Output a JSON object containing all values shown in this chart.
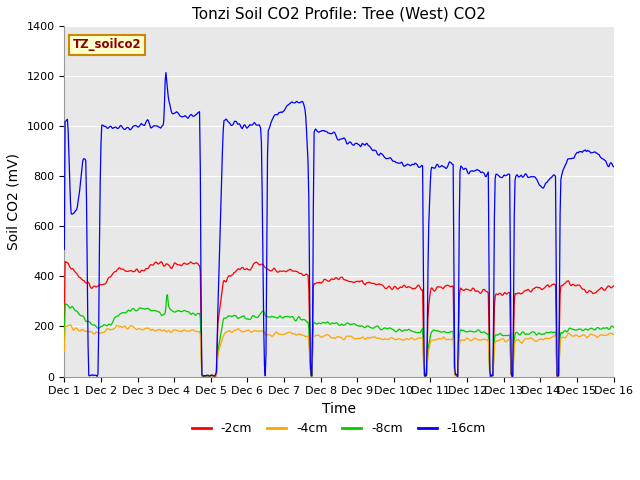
{
  "title": "Tonzi Soil CO2 Profile: Tree (West) CO2",
  "ylabel": "Soil CO2 (mV)",
  "xlabel": "Time",
  "legend_label": "TZ_soilco2",
  "series_labels": [
    "-2cm",
    "-4cm",
    "-8cm",
    "-16cm"
  ],
  "series_colors": [
    "#ff0000",
    "#ffa500",
    "#00cc00",
    "#0000ff"
  ],
  "ylim": [
    0,
    1400
  ],
  "xlim": [
    0,
    360
  ],
  "xtick_positions": [
    0,
    24,
    48,
    72,
    96,
    120,
    144,
    168,
    192,
    216,
    240,
    264,
    288,
    312,
    336,
    360
  ],
  "xtick_labels": [
    "Dec 1",
    "Dec 2",
    "Dec 3",
    "Dec 4",
    "Dec 5",
    "Dec 6",
    "Dec 7",
    "Dec 8",
    "Dec 9",
    "Dec 10",
    "Dec 11",
    "Dec 12",
    "Dec 13",
    "Dec 14",
    "Dec 15",
    "Dec 16"
  ],
  "plot_bg_color": "#e8e8e8",
  "grid_color": "#ffffff",
  "title_fontsize": 11,
  "axis_fontsize": 10,
  "tick_fontsize": 8,
  "figsize": [
    6.4,
    4.8
  ],
  "dpi": 100
}
